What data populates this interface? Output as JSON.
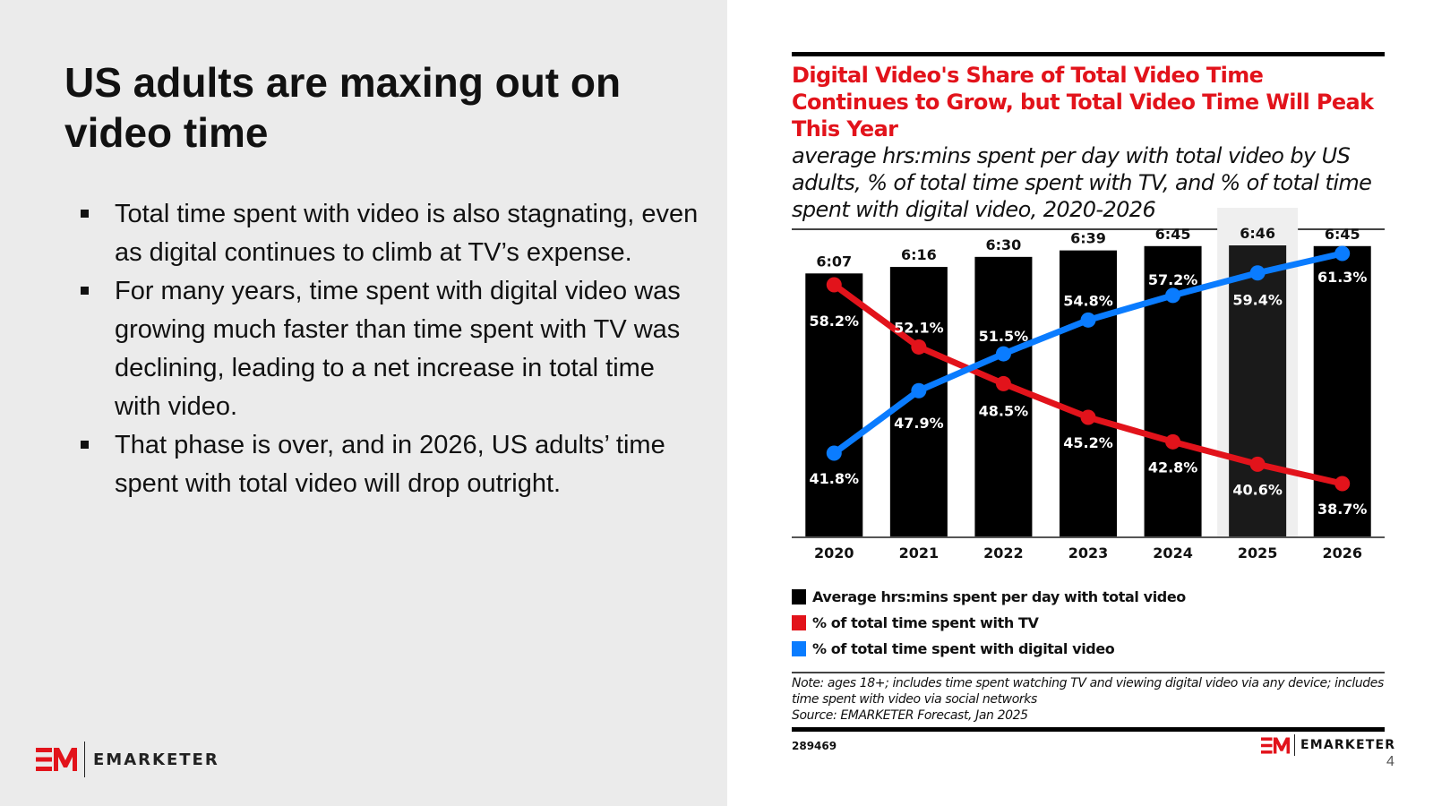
{
  "slide": {
    "title": "US adults are maxing out on video time",
    "bullets": [
      "Total time spent with video is also stagnating, even as digital continues to climb at TV’s expense.",
      "For many years, time spent with digital video was growing much faster than time spent with TV was declining, leading to a net increase in total time with video.",
      "That phase is over, and in 2026, US adults’ time spent with total video will drop outright."
    ],
    "brand": "EMARKETER",
    "page_number": "4"
  },
  "chart_data": {
    "type": "bar",
    "title": "Digital Video's Share of Total Video Time Continues to Grow, but Total Video Time Will Peak This Year",
    "subtitle": "average hrs:mins spent per day with total video by US adults, % of total time spent with TV, and % of total time spent with digital video, 2020-2026",
    "categories": [
      "2020",
      "2021",
      "2022",
      "2023",
      "2024",
      "2025",
      "2026"
    ],
    "highlighted_category": "2025",
    "series": [
      {
        "name": "Average hrs:mins spent per day with total video",
        "type": "bar",
        "color": "#000000",
        "values_minutes": [
          367,
          376,
          390,
          399,
          405,
          406,
          405
        ],
        "labels": [
          "6:07",
          "6:16",
          "6:30",
          "6:39",
          "6:45",
          "6:46",
          "6:45"
        ]
      },
      {
        "name": "% of total time spent with TV",
        "type": "line",
        "color": "#e2131b",
        "values": [
          58.2,
          52.1,
          48.5,
          45.2,
          42.8,
          40.6,
          38.7
        ],
        "labels": [
          "58.2%",
          "52.1%",
          "48.5%",
          "45.2%",
          "42.8%",
          "40.6%",
          "38.7%"
        ]
      },
      {
        "name": "% of total time spent with digital video",
        "type": "line",
        "color": "#0a7cff",
        "values": [
          41.8,
          47.9,
          51.5,
          54.8,
          57.2,
          59.4,
          61.3
        ],
        "labels": [
          "41.8%",
          "47.9%",
          "51.5%",
          "54.8%",
          "57.2%",
          "59.4%",
          "61.3%"
        ]
      }
    ],
    "xlabel": "",
    "ylabel": "",
    "grid": false,
    "legend_position": "bottom-left",
    "note": "Note: ages 18+; includes time spent watching TV and viewing digital video via any device; includes time spent with video via social networks",
    "source": "Source: EMARKETER Forecast, Jan 2025",
    "chart_id": "289469"
  }
}
